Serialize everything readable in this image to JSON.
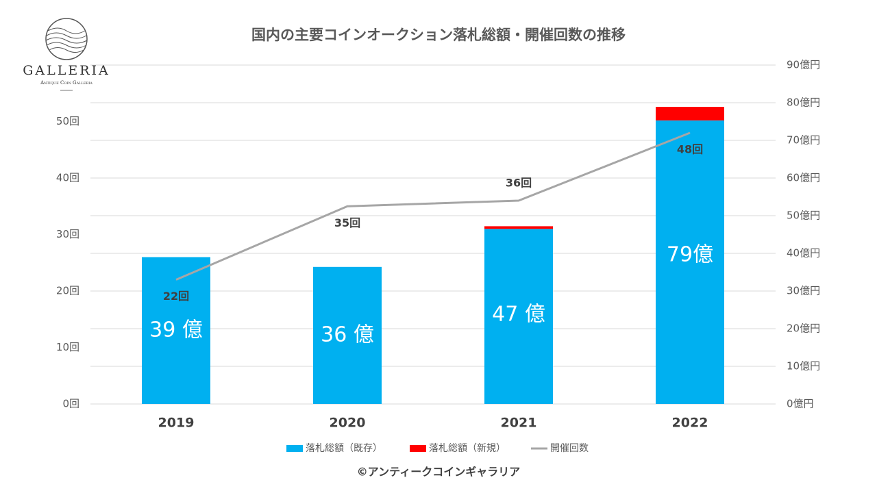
{
  "logo": {
    "name": "GALLERIA",
    "tagline": "Antique Coin Galleria"
  },
  "chart_data": {
    "type": "bar",
    "title": "国内の主要コインオークション落札総額・開催回数の推移",
    "categories": [
      "2019",
      "2020",
      "2021",
      "2022"
    ],
    "series": [
      {
        "name": "落札総額（既存）",
        "color": "#00b0f0",
        "type": "bar",
        "axis": "y2",
        "values": [
          39,
          36.4,
          46.5,
          75.3
        ]
      },
      {
        "name": "落札総額（新規）",
        "color": "#ff0000",
        "type": "bar",
        "axis": "y2",
        "values": [
          0,
          0,
          0.7,
          3.6
        ]
      },
      {
        "name": "開催回数",
        "color": "#a6a6a6",
        "type": "line",
        "values": [
          22,
          35,
          36,
          48
        ],
        "value_labels": [
          "22回",
          "35回",
          "36回",
          "48回"
        ]
      }
    ],
    "total_labels": [
      "39 億",
      "36 億",
      "47 億",
      "79億"
    ],
    "ylim": [
      0,
      60
    ],
    "yticks": [
      {
        "value": 0,
        "label": "0回"
      },
      {
        "value": 10,
        "label": "10回"
      },
      {
        "value": 20,
        "label": "20回"
      },
      {
        "value": 30,
        "label": "30回"
      },
      {
        "value": 40,
        "label": "40回"
      },
      {
        "value": 50,
        "label": "50回"
      }
    ],
    "y2lim": [
      0,
      90
    ],
    "y2ticks": [
      {
        "value": 0,
        "label": "0億円"
      },
      {
        "value": 10,
        "label": "10億円"
      },
      {
        "value": 20,
        "label": "20億円"
      },
      {
        "value": 30,
        "label": "30億円"
      },
      {
        "value": 40,
        "label": "40億円"
      },
      {
        "value": 50,
        "label": "50億円"
      },
      {
        "value": 60,
        "label": "60億円"
      },
      {
        "value": 70,
        "label": "70億円"
      },
      {
        "value": 80,
        "label": "80億円"
      },
      {
        "value": 90,
        "label": "90億円"
      }
    ],
    "grid": true,
    "legend": "bottom",
    "source": "©アンティークコインギャラリア"
  }
}
